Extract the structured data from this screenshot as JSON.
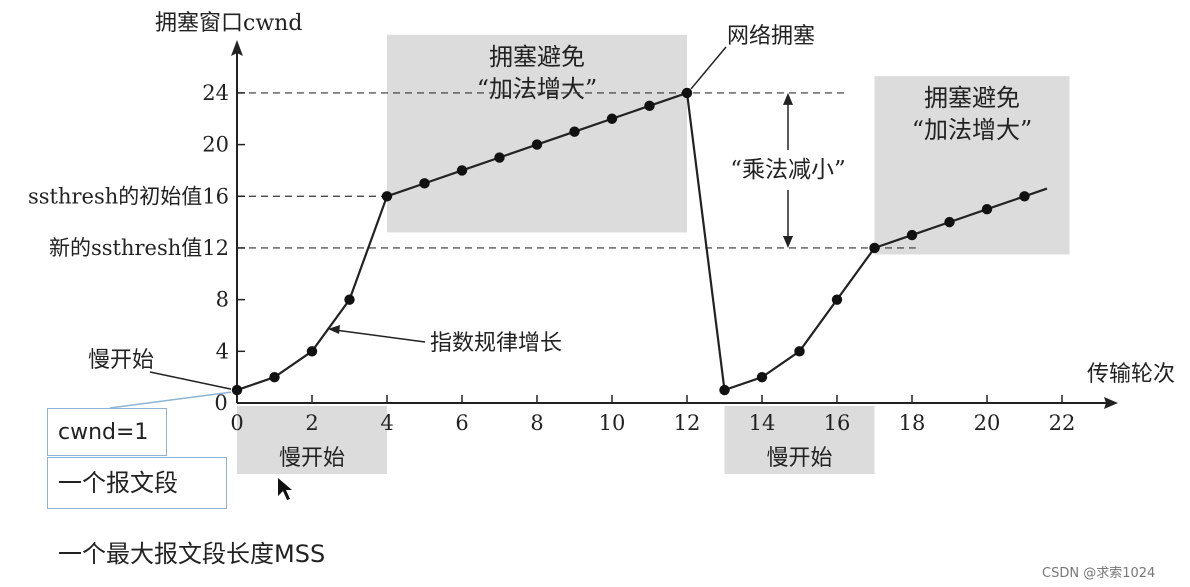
{
  "chart_data": {
    "type": "line",
    "ylabel": "拥塞窗口cwnd",
    "xlabel": "传输轮次",
    "xlim": [
      0,
      23
    ],
    "ylim": [
      0,
      26
    ],
    "xticks": [
      0,
      2,
      4,
      6,
      8,
      10,
      12,
      14,
      16,
      18,
      20,
      22
    ],
    "yticks": [
      4,
      8,
      12,
      16,
      20,
      24
    ],
    "x": [
      0,
      1,
      2,
      3,
      4,
      5,
      6,
      7,
      8,
      9,
      10,
      11,
      12,
      13,
      14,
      15,
      16,
      17,
      18,
      19,
      20,
      21
    ],
    "y": [
      1,
      2,
      4,
      8,
      16,
      17,
      18,
      19,
      20,
      21,
      22,
      23,
      24,
      1,
      2,
      4,
      8,
      12,
      13,
      14,
      15,
      16
    ],
    "line_tail_end": [
      21.6,
      16.6
    ],
    "ytick_prefix": {
      "16": "ssthresh的初始值",
      "12": "新的ssthresh值"
    },
    "regions": [
      {
        "label": "慢开始",
        "x": [
          0,
          4
        ],
        "where": "below-axis"
      },
      {
        "label": "拥塞避免\n“加法增大”",
        "x": [
          4,
          12
        ],
        "y": [
          13.2,
          28.5
        ]
      },
      {
        "label": "慢开始",
        "x": [
          13,
          17
        ],
        "where": "below-axis"
      },
      {
        "label": "拥塞避免\n“加法增大”",
        "x": [
          17,
          22.2
        ],
        "y": [
          11.5,
          25.3
        ]
      }
    ],
    "annotations": {
      "congestion": "网络拥塞",
      "multiplicative": "“乘法减小”",
      "exponential": "指数规律增长",
      "slow_start": "慢开始"
    }
  },
  "labels": {
    "cwnd_box": "cwnd=1",
    "segment_box": "一个报文段",
    "footer": "一个最大报文段长度MSS",
    "watermark": "CSDN @求索1024"
  }
}
